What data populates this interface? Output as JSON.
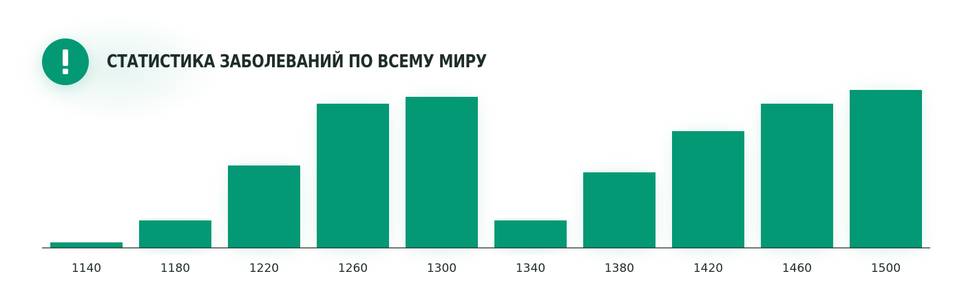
{
  "header": {
    "title": "Статистика заболеваний по всему миру",
    "icon": "exclamation-icon"
  },
  "colors": {
    "accent": "#039974",
    "text": "#1f2d2a",
    "axis": "#1f2d2a"
  },
  "chart_data": {
    "type": "bar",
    "title": "Статистика заболеваний по всему миру",
    "xlabel": "",
    "ylabel": "",
    "categories": [
      "1140",
      "1180",
      "1220",
      "1260",
      "1300",
      "1340",
      "1380",
      "1420",
      "1460",
      "1500"
    ],
    "values": [
      4,
      20,
      60,
      105,
      110,
      20,
      55,
      85,
      105,
      115
    ],
    "ylim": [
      0,
      115
    ],
    "grid": false,
    "legend": "none"
  }
}
